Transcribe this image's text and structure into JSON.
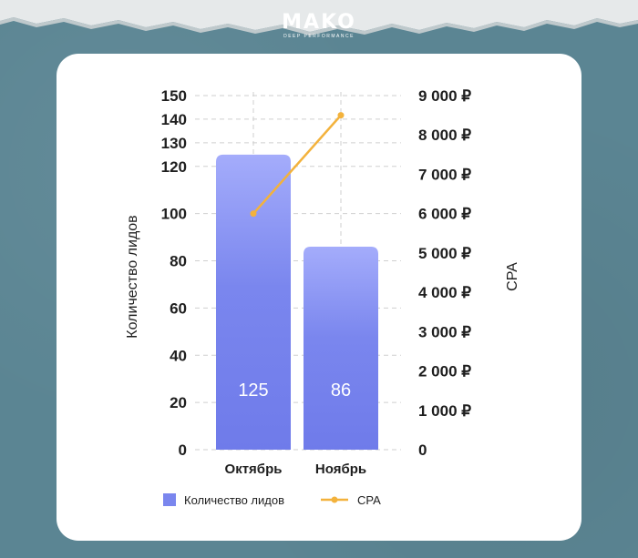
{
  "brand": {
    "logo": "MAKO",
    "tagline": "DEEP PERFORMANCE"
  },
  "colors": {
    "background": "#5b8593",
    "card": "#ffffff",
    "bar_top": "#a4acfb",
    "bar_bottom": "#6f7bea",
    "line": "#f3b23c",
    "grid": "#cfcfcf"
  },
  "chart_data": {
    "type": "bar",
    "categories": [
      "Октябрь",
      "Ноябрь"
    ],
    "series": [
      {
        "name": "Количество лидов",
        "type": "bar",
        "axis": "left",
        "values": [
          125,
          86
        ],
        "data_labels": [
          "125",
          "86"
        ]
      },
      {
        "name": "CPA",
        "type": "line",
        "axis": "right",
        "values": [
          6000,
          8500
        ]
      }
    ],
    "ylabel": "Количество лидов",
    "ylabel_right": "CPA",
    "ylim": [
      0,
      150
    ],
    "ylim_right": [
      0,
      9000
    ],
    "yticks": [
      "0",
      "20",
      "40",
      "60",
      "80",
      "100",
      "120",
      "130",
      "140",
      "150"
    ],
    "yticks_values": [
      0,
      20,
      40,
      60,
      80,
      100,
      120,
      130,
      140,
      150
    ],
    "yticks_right": [
      "0",
      "1 000 ₽",
      "2 000 ₽",
      "3 000 ₽",
      "4 000 ₽",
      "5 000 ₽",
      "6 000 ₽",
      "7 000 ₽",
      "8 000 ₽",
      "9 000 ₽"
    ],
    "grid": true,
    "legend_position": "bottom"
  }
}
